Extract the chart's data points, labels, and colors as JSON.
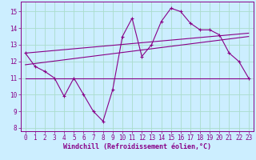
{
  "xlabel": "Windchill (Refroidissement éolien,°C)",
  "bg_color": "#cceeff",
  "line_color": "#880088",
  "grid_color": "#aaddcc",
  "x": [
    0,
    1,
    2,
    3,
    4,
    5,
    6,
    7,
    8,
    9,
    10,
    11,
    12,
    13,
    14,
    15,
    16,
    17,
    18,
    19,
    20,
    21,
    22,
    23
  ],
  "y_main": [
    12.5,
    11.7,
    11.4,
    11.0,
    9.9,
    11.0,
    10.0,
    9.0,
    8.4,
    10.3,
    13.5,
    14.6,
    12.3,
    13.0,
    14.4,
    15.2,
    15.0,
    14.3,
    13.9,
    13.9,
    13.6,
    12.5,
    12.0,
    11.0
  ],
  "y_min": [
    11.0,
    11.0,
    11.0,
    11.0,
    11.0,
    11.0,
    11.0,
    11.0,
    11.0,
    11.0,
    11.0,
    11.0,
    11.0,
    11.0,
    11.0,
    11.0,
    11.0,
    11.0,
    11.0,
    11.0,
    11.0,
    11.0,
    11.0,
    11.0
  ],
  "trend1_x": [
    0,
    23
  ],
  "trend1_y": [
    12.5,
    13.7
  ],
  "trend2_x": [
    0,
    23
  ],
  "trend2_y": [
    11.8,
    13.5
  ],
  "xlim": [
    -0.5,
    23.5
  ],
  "ylim": [
    7.8,
    15.6
  ],
  "yticks": [
    8,
    9,
    10,
    11,
    12,
    13,
    14,
    15
  ],
  "xticks": [
    0,
    1,
    2,
    3,
    4,
    5,
    6,
    7,
    8,
    9,
    10,
    11,
    12,
    13,
    14,
    15,
    16,
    17,
    18,
    19,
    20,
    21,
    22,
    23
  ],
  "tick_fontsize": 5.5,
  "xlabel_fontsize": 6.0
}
